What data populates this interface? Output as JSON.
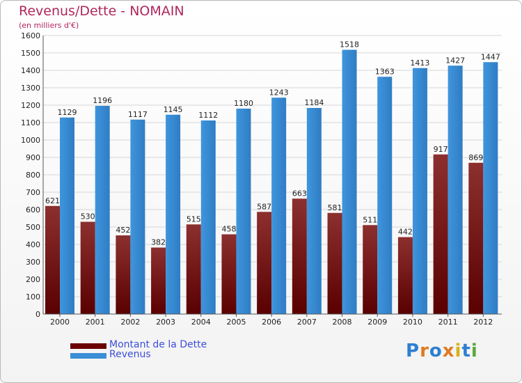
{
  "header": {
    "title": "Revenus/Dette - NOMAIN",
    "subtitle": "(en milliers d'€)"
  },
  "legend": {
    "items": [
      {
        "label": "Montant de la Dette",
        "color": "#6b0000"
      },
      {
        "label": "Revenus",
        "color": "#3a8fd6"
      }
    ]
  },
  "logo": {
    "text": "Proxiti",
    "letter_colors": [
      "#2e7fd1",
      "#e07a1f",
      "#2e7fd1",
      "#e07a1f",
      "#d6b21a",
      "#2e7fd1",
      "#5aa83a"
    ]
  },
  "chart_data": {
    "type": "bar",
    "categories": [
      "2000",
      "2001",
      "2002",
      "2003",
      "2004",
      "2005",
      "2006",
      "2007",
      "2008",
      "2009",
      "2010",
      "2011",
      "2012"
    ],
    "series": [
      {
        "name": "Montant de la Dette",
        "color": "#6b0000",
        "values": [
          621,
          530,
          452,
          382,
          515,
          458,
          587,
          663,
          581,
          511,
          442,
          917,
          869
        ]
      },
      {
        "name": "Revenus",
        "color": "#3a8fd6",
        "values": [
          1129,
          1196,
          1117,
          1145,
          1112,
          1180,
          1243,
          1184,
          1518,
          1363,
          1413,
          1427,
          1447
        ]
      }
    ],
    "y_ticks": [
      "0",
      "100",
      "200",
      "300",
      "400",
      "500",
      "600",
      "700",
      "800",
      "900",
      "1000",
      "1100",
      "1200",
      "1300",
      "1400",
      "1500",
      "1600"
    ],
    "ylim": [
      0,
      1600
    ],
    "grid": true,
    "legend_position": "bottom-left"
  }
}
